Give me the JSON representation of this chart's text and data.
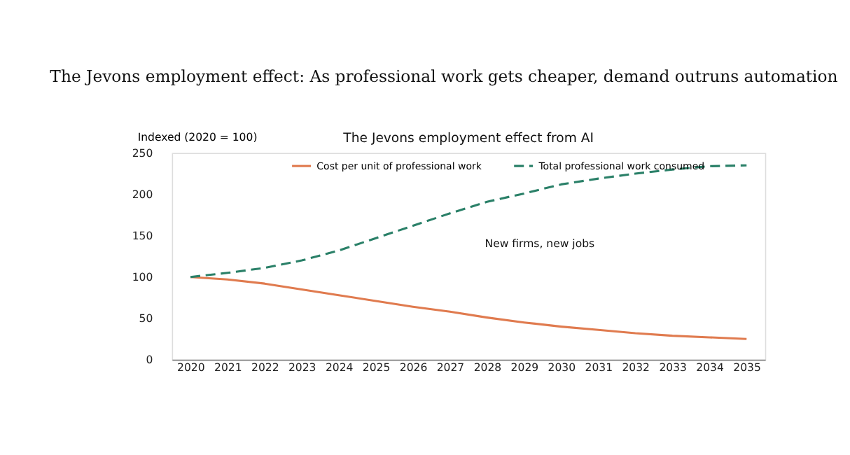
{
  "chart_data": {
    "type": "line",
    "title": "The Jevons employment effect: As professional work gets cheaper, demand outruns automation",
    "subtitle": "The Jevons employment effect from AI",
    "ylabel": "Indexed (2020 = 100)",
    "categories": [
      "2020",
      "2021",
      "2022",
      "2023",
      "2024",
      "2025",
      "2026",
      "2027",
      "2028",
      "2029",
      "2030",
      "2031",
      "2032",
      "2033",
      "2034",
      "2035"
    ],
    "series": [
      {
        "name": "Cost per unit of professional work",
        "color": "#e07b4f",
        "line_style": "solid",
        "values": [
          100,
          97,
          92,
          85,
          78,
          71,
          64,
          58,
          51,
          45,
          40,
          36,
          32,
          29,
          27,
          25
        ]
      },
      {
        "name": "Total professional work consumed",
        "color": "#2a8068",
        "line_style": "dashed",
        "values": [
          100,
          105,
          111,
          120,
          132,
          147,
          162,
          177,
          191,
          201,
          212,
          219,
          225,
          230,
          234,
          235
        ]
      }
    ],
    "ylim": [
      0,
      250
    ],
    "yticks": [
      0,
      50,
      100,
      150,
      200,
      250
    ],
    "grid": false,
    "legend": "top",
    "annotations": [
      "New firms, new jobs"
    ]
  }
}
